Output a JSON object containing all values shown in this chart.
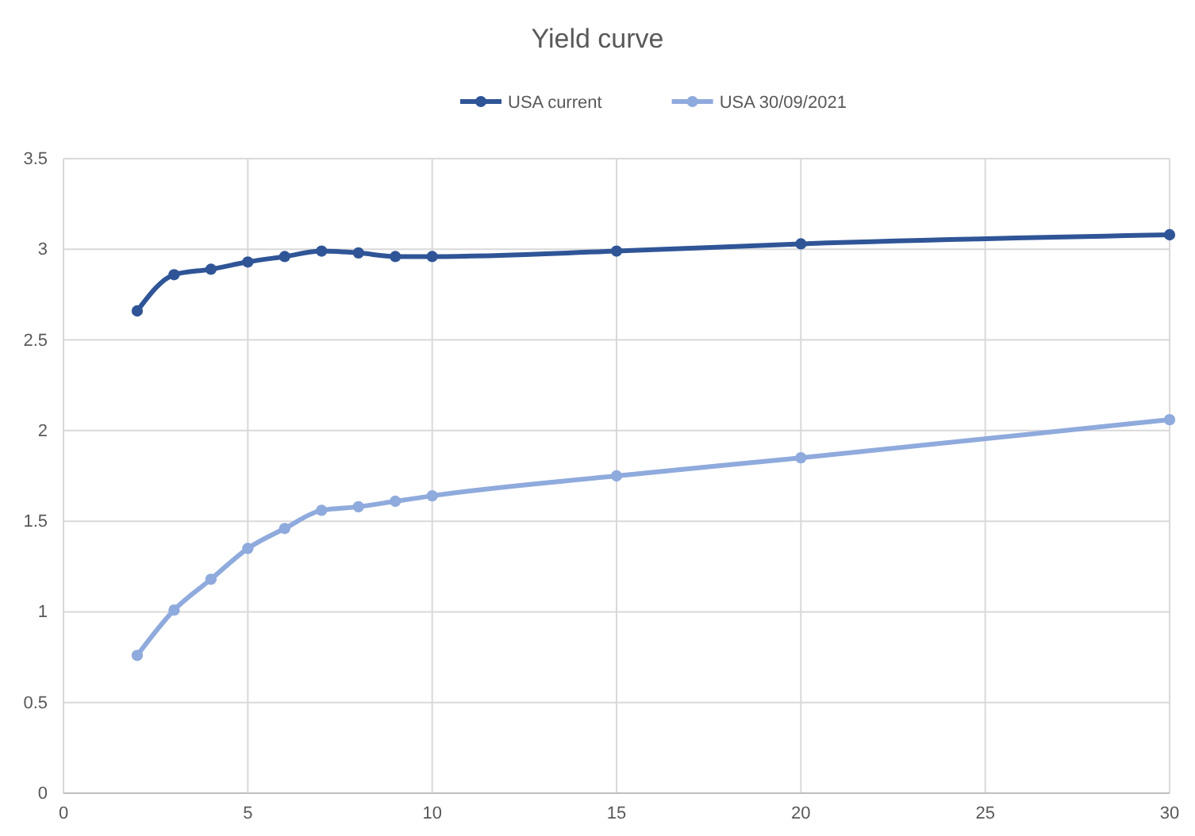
{
  "chart_data": {
    "type": "line",
    "title": "Yield curve",
    "x": [
      2,
      3,
      4,
      5,
      6,
      7,
      8,
      9,
      10,
      15,
      20,
      30
    ],
    "series": [
      {
        "name": "USA current",
        "color": "#2f5597",
        "values": [
          2.66,
          2.86,
          2.89,
          2.93,
          2.96,
          2.99,
          2.98,
          2.96,
          2.96,
          2.99,
          3.03,
          3.08
        ]
      },
      {
        "name": "USA 30/09/2021",
        "color": "#8faadc",
        "values": [
          0.76,
          1.01,
          1.18,
          1.35,
          1.46,
          1.56,
          1.58,
          1.61,
          1.64,
          1.75,
          1.85,
          2.06
        ]
      }
    ],
    "xlim": [
      0,
      30
    ],
    "xticks": [
      0,
      5,
      10,
      15,
      20,
      25,
      30
    ],
    "ylim": [
      0,
      3.5
    ],
    "yticks": [
      0,
      0.5,
      1,
      1.5,
      2,
      2.5,
      3,
      3.5
    ],
    "grid": true,
    "legend": "top",
    "marker": "circle",
    "line_style": "solid"
  }
}
